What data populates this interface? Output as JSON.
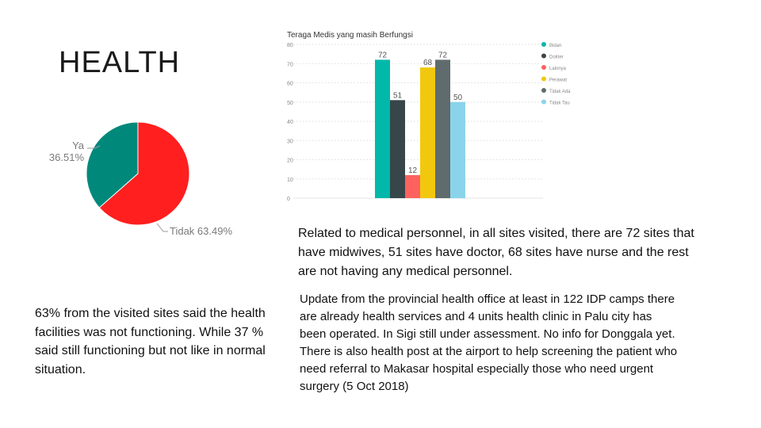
{
  "page": {
    "title": "HEALTH",
    "left_text": "63% from the visited sites said the health facilities was not functioning. While 37 % said still functioning but not like in normal situation.",
    "right_text_top": "Related to medical personnel, in all sites visited, there are 72 sites that have midwives, 51 sites have doctor, 68 sites have nurse and the rest are not having any medical personnel.",
    "right_text_bottom": "Update from the provincial health office at least in 122 IDP camps there are already health services and 4 units health clinic in Palu  city has been operated. In Sigi still under assessment. No info for Donggala yet. There is also health post at the airport to help screening the patient who need referral to Makasar hospital especially those who need urgent surgery (5 Oct 2018)"
  },
  "chart_data": [
    {
      "type": "pie",
      "title": "",
      "slices": [
        {
          "label": "Ya",
          "value": 36.51,
          "display": "36.51%",
          "color": "#00897b"
        },
        {
          "label": "Tidak",
          "value": 63.49,
          "display": "63.49%",
          "color": "#ff1f1f"
        }
      ]
    },
    {
      "type": "bar",
      "title": "Teraga Medis yang masih Berfungsi",
      "ylim": [
        0,
        80
      ],
      "yticks": [
        0,
        10,
        20,
        30,
        40,
        50,
        60,
        70,
        80
      ],
      "grid": true,
      "legend_position": "right",
      "categories": [
        "Bidan",
        "Dokter",
        "Lainnya",
        "Perawat",
        "Tidak Ada",
        "Tidak Tau"
      ],
      "values": [
        72,
        51,
        12,
        68,
        72,
        50
      ],
      "colors": [
        "#01b8aa",
        "#374649",
        "#fd625e",
        "#f2c80f",
        "#5f6b6d",
        "#8ad4eb"
      ]
    }
  ]
}
